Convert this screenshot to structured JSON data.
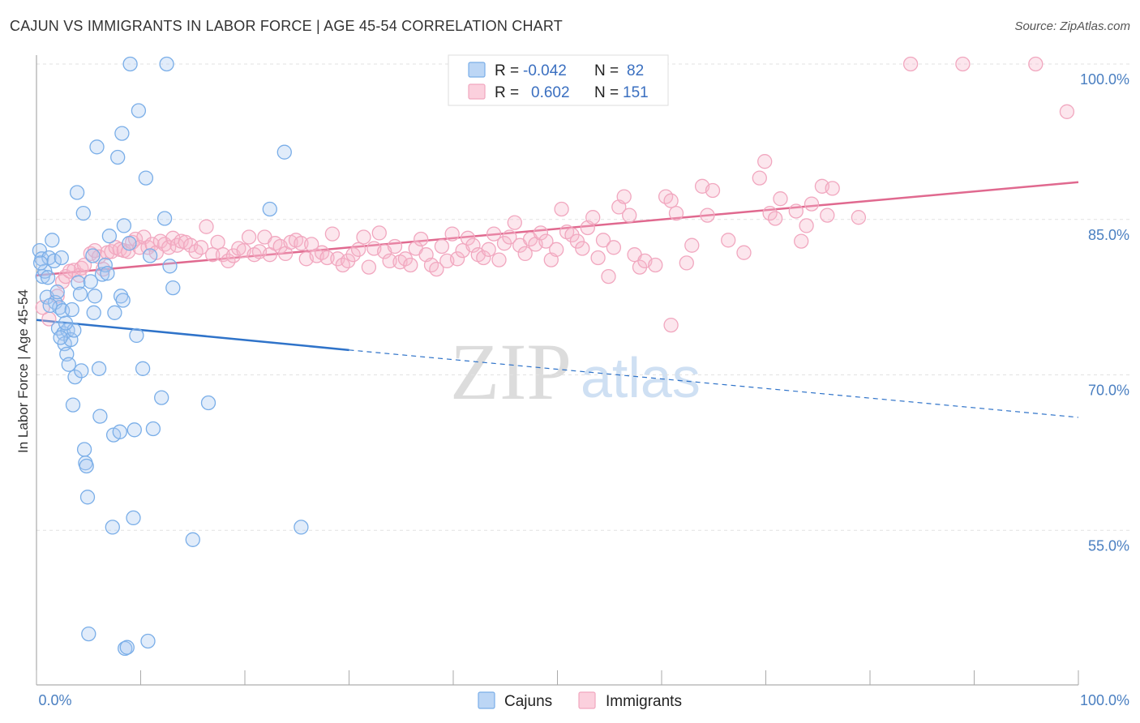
{
  "header": {
    "title": "CAJUN VS IMMIGRANTS IN LABOR FORCE | AGE 45-54 CORRELATION CHART",
    "source": "Source: ZipAtlas.com"
  },
  "watermark": {
    "zip": "ZIP",
    "atlas": "atlas"
  },
  "legend": {
    "rows": [
      {
        "r_label": "R =",
        "r_value": "-0.042",
        "n_label": "N =",
        "n_value": "82",
        "color": "#7aaee8"
      },
      {
        "r_label": "R =",
        "r_value": "0.602",
        "n_label": "N =",
        "n_value": "151",
        "color": "#f1a7bf"
      }
    ]
  },
  "bottom_legend": {
    "cajuns": "Cajuns",
    "immigrants": "Immigrants"
  },
  "chart_data": {
    "type": "scatter",
    "title": "CAJUN VS IMMIGRANTS IN LABOR FORCE | AGE 45-54 CORRELATION CHART",
    "ylabel": "In Labor Force | Age 45-54",
    "xlabel": "",
    "xlim": [
      0,
      100
    ],
    "ylim": [
      40,
      102
    ],
    "x_tick_labels": [
      "0.0%",
      "100.0%"
    ],
    "y_ticks": [
      55,
      70,
      85,
      100
    ],
    "y_tick_labels": [
      "55.0%",
      "70.0%",
      "85.0%",
      "100.0%"
    ],
    "grid": "horizontal dashed",
    "legend_position": "top-center",
    "series": [
      {
        "name": "Cajuns",
        "color": "#7aaee8",
        "line_color": "#2f73c9",
        "trend": {
          "x0": 0,
          "y0": 75.3,
          "x1": 30,
          "y1": 72.4,
          "dashed_to_x": 100,
          "dashed_to_y": 65.9
        },
        "points": [
          [
            0.3,
            82
          ],
          [
            0.5,
            81.2
          ],
          [
            0.6,
            79.5
          ],
          [
            0.8,
            80
          ],
          [
            1,
            77.5
          ],
          [
            1.2,
            81.3
          ],
          [
            1.5,
            83
          ],
          [
            1.7,
            81
          ],
          [
            1.8,
            77
          ],
          [
            2,
            78
          ],
          [
            2.1,
            74.5
          ],
          [
            2.2,
            76.5
          ],
          [
            2.4,
            81.3
          ],
          [
            2.5,
            76.2
          ],
          [
            2.6,
            74
          ],
          [
            2.7,
            73
          ],
          [
            2.9,
            72
          ],
          [
            3,
            74.3
          ],
          [
            3.1,
            71
          ],
          [
            3.3,
            73.4
          ],
          [
            3.4,
            76.3
          ],
          [
            3.5,
            67.1
          ],
          [
            3.7,
            69.8
          ],
          [
            3.9,
            87.6
          ],
          [
            4,
            78.9
          ],
          [
            4.2,
            77.8
          ],
          [
            4.3,
            70.4
          ],
          [
            4.5,
            85.6
          ],
          [
            4.6,
            62.8
          ],
          [
            4.7,
            61.5
          ],
          [
            4.8,
            61.2
          ],
          [
            4.9,
            58.2
          ],
          [
            5,
            45
          ],
          [
            5.2,
            79
          ],
          [
            5.4,
            81.5
          ],
          [
            5.5,
            76
          ],
          [
            5.6,
            77.6
          ],
          [
            5.8,
            92
          ],
          [
            6,
            70.6
          ],
          [
            6.1,
            66
          ],
          [
            6.3,
            79.7
          ],
          [
            6.6,
            80.6
          ],
          [
            7,
            83.4
          ],
          [
            7.3,
            55.3
          ],
          [
            7.4,
            64.2
          ],
          [
            7.5,
            76
          ],
          [
            7.8,
            91
          ],
          [
            8,
            64.5
          ],
          [
            8.1,
            77.6
          ],
          [
            8.2,
            93.3
          ],
          [
            8.3,
            77.2
          ],
          [
            8.4,
            84.4
          ],
          [
            8.5,
            43.6
          ],
          [
            8.7,
            43.7
          ],
          [
            8.9,
            82.7
          ],
          [
            9,
            100
          ],
          [
            9.3,
            56.2
          ],
          [
            9.4,
            64.7
          ],
          [
            9.6,
            73.8
          ],
          [
            9.8,
            95.5
          ],
          [
            10.2,
            70.6
          ],
          [
            10.5,
            89
          ],
          [
            10.7,
            44.3
          ],
          [
            10.9,
            81.5
          ],
          [
            11.2,
            64.8
          ],
          [
            12,
            67.8
          ],
          [
            12.3,
            85.1
          ],
          [
            12.5,
            100
          ],
          [
            12.8,
            80.5
          ],
          [
            13.1,
            78.4
          ],
          [
            15,
            54.1
          ],
          [
            16.5,
            67.3
          ],
          [
            22.4,
            86
          ],
          [
            23.8,
            91.5
          ],
          [
            25.4,
            55.3
          ],
          [
            0.4,
            80.8
          ],
          [
            1.3,
            76.7
          ],
          [
            2.3,
            73.6
          ],
          [
            6.8,
            79.8
          ],
          [
            3.6,
            74.3
          ],
          [
            1.1,
            79.4
          ],
          [
            2.8,
            75
          ]
        ]
      },
      {
        "name": "Immigrants",
        "color": "#f1a7bf",
        "line_color": "#e0698f",
        "trend": {
          "x0": 0,
          "y0": 79.6,
          "x1": 100,
          "y1": 88.6
        },
        "points": [
          [
            0.6,
            76.5
          ],
          [
            1.2,
            75.4
          ],
          [
            2,
            77.6
          ],
          [
            2.5,
            79
          ],
          [
            2.8,
            79.5
          ],
          [
            3.2,
            80
          ],
          [
            3.6,
            80.1
          ],
          [
            4.1,
            79.6
          ],
          [
            4.3,
            80.3
          ],
          [
            5.2,
            81.7
          ],
          [
            5.6,
            82
          ],
          [
            6,
            81.4
          ],
          [
            6.4,
            80.2
          ],
          [
            6.8,
            81.8
          ],
          [
            7.2,
            81.9
          ],
          [
            7.6,
            82.3
          ],
          [
            8,
            82.1
          ],
          [
            8.4,
            82
          ],
          [
            8.8,
            81.9
          ],
          [
            9.2,
            82.8
          ],
          [
            9.5,
            83.1
          ],
          [
            9.9,
            82.3
          ],
          [
            10.3,
            83.3
          ],
          [
            10.7,
            82.3
          ],
          [
            11.1,
            82.6
          ],
          [
            11.5,
            81.8
          ],
          [
            11.9,
            82.9
          ],
          [
            12.3,
            82.6
          ],
          [
            12.7,
            82.3
          ],
          [
            13.1,
            83.2
          ],
          [
            13.5,
            82.5
          ],
          [
            13.9,
            82.9
          ],
          [
            14.3,
            82.8
          ],
          [
            14.8,
            82.5
          ],
          [
            15.3,
            81.9
          ],
          [
            15.8,
            82.3
          ],
          [
            16.3,
            84.3
          ],
          [
            16.9,
            81.6
          ],
          [
            17.4,
            82.8
          ],
          [
            17.9,
            81.6
          ],
          [
            18.4,
            81
          ],
          [
            18.9,
            81.5
          ],
          [
            19.4,
            82.2
          ],
          [
            19.9,
            82
          ],
          [
            20.4,
            83.3
          ],
          [
            20.9,
            81.6
          ],
          [
            21.4,
            81.9
          ],
          [
            21.9,
            83.3
          ],
          [
            22.4,
            81.6
          ],
          [
            22.9,
            82.7
          ],
          [
            23.4,
            82.4
          ],
          [
            23.9,
            81.7
          ],
          [
            24.4,
            82.8
          ],
          [
            24.9,
            83
          ],
          [
            25.4,
            82.7
          ],
          [
            25.9,
            81.2
          ],
          [
            26.4,
            82.6
          ],
          [
            26.9,
            81.5
          ],
          [
            27.4,
            81.8
          ],
          [
            27.9,
            81.3
          ],
          [
            28.4,
            83.6
          ],
          [
            28.9,
            81.2
          ],
          [
            29.4,
            80.6
          ],
          [
            29.9,
            81
          ],
          [
            30.4,
            81.6
          ],
          [
            30.9,
            82.1
          ],
          [
            31.4,
            83.3
          ],
          [
            31.9,
            80.4
          ],
          [
            32.4,
            82.2
          ],
          [
            32.9,
            83.7
          ],
          [
            33.4,
            81.9
          ],
          [
            33.9,
            81
          ],
          [
            34.4,
            82.4
          ],
          [
            34.9,
            80.9
          ],
          [
            35.4,
            81.2
          ],
          [
            35.9,
            80.6
          ],
          [
            36.4,
            82.2
          ],
          [
            36.9,
            83.1
          ],
          [
            37.4,
            81.6
          ],
          [
            37.9,
            80.6
          ],
          [
            38.4,
            80.2
          ],
          [
            38.9,
            82.4
          ],
          [
            39.4,
            81
          ],
          [
            39.9,
            83.6
          ],
          [
            40.4,
            81.2
          ],
          [
            40.9,
            82
          ],
          [
            41.4,
            83.2
          ],
          [
            41.9,
            82.5
          ],
          [
            42.4,
            81.6
          ],
          [
            42.9,
            81.3
          ],
          [
            43.4,
            82.1
          ],
          [
            43.9,
            83.6
          ],
          [
            44.4,
            81.1
          ],
          [
            44.9,
            82.7
          ],
          [
            45.4,
            83.3
          ],
          [
            45.9,
            84.7
          ],
          [
            46.4,
            82.5
          ],
          [
            46.9,
            81.7
          ],
          [
            47.4,
            83.1
          ],
          [
            47.9,
            82.6
          ],
          [
            48.4,
            83.7
          ],
          [
            48.9,
            82.9
          ],
          [
            49.4,
            81.1
          ],
          [
            49.9,
            82.1
          ],
          [
            50.4,
            86
          ],
          [
            50.9,
            83.8
          ],
          [
            51.4,
            83.5
          ],
          [
            51.9,
            82.9
          ],
          [
            52.4,
            82.2
          ],
          [
            52.9,
            84.2
          ],
          [
            53.4,
            85.2
          ],
          [
            53.9,
            81.3
          ],
          [
            54.4,
            83
          ],
          [
            54.9,
            79.5
          ],
          [
            55.4,
            82.3
          ],
          [
            55.9,
            86.2
          ],
          [
            56.4,
            87.2
          ],
          [
            56.9,
            85.4
          ],
          [
            57.4,
            81.6
          ],
          [
            57.9,
            80.4
          ],
          [
            58.4,
            81
          ],
          [
            59.4,
            80.6
          ],
          [
            60.4,
            87.2
          ],
          [
            60.9,
            86.8
          ],
          [
            61.4,
            85.6
          ],
          [
            62.4,
            80.8
          ],
          [
            62.9,
            82.5
          ],
          [
            63.9,
            88.2
          ],
          [
            64.4,
            85.4
          ],
          [
            64.9,
            87.8
          ],
          [
            66.4,
            83
          ],
          [
            67.9,
            81.8
          ],
          [
            69.4,
            89
          ],
          [
            69.9,
            90.6
          ],
          [
            70.4,
            85.6
          ],
          [
            70.9,
            85.1
          ],
          [
            71.4,
            87
          ],
          [
            72.9,
            85.8
          ],
          [
            73.4,
            82.9
          ],
          [
            73.9,
            84.4
          ],
          [
            74.4,
            86.5
          ],
          [
            75.4,
            88.2
          ],
          [
            75.9,
            85.4
          ],
          [
            76.4,
            88
          ],
          [
            78.9,
            85.2
          ],
          [
            83.9,
            100
          ],
          [
            88.9,
            100
          ],
          [
            95.9,
            100
          ],
          [
            98.9,
            95.4
          ],
          [
            60.9,
            74.8
          ],
          [
            4.6,
            80.6
          ]
        ]
      }
    ]
  }
}
